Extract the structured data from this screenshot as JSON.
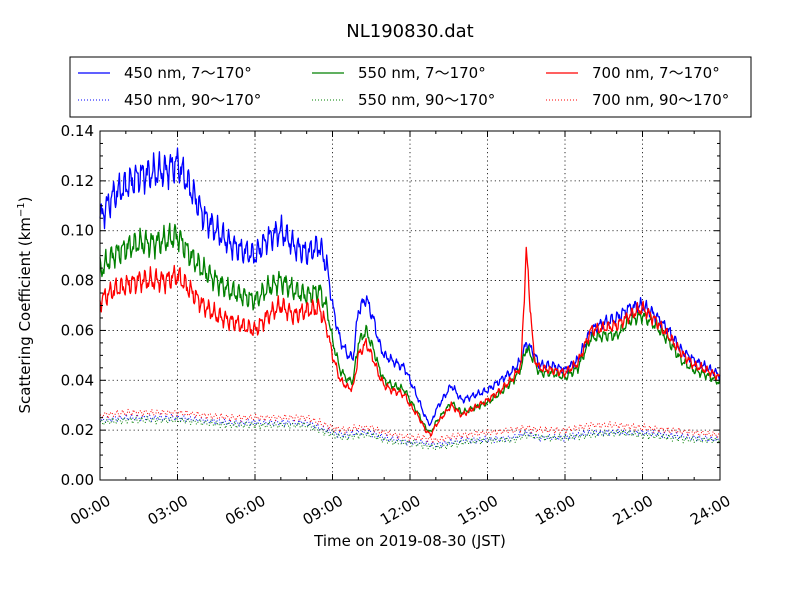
{
  "chart_data": {
    "type": "line",
    "title": "NL190830.dat",
    "xlabel": "Time on 2019-08-30 (JST)",
    "ylabel_base": "Scattering Coefficient (km",
    "ylabel_sup": "−1",
    "ylabel_end": ")",
    "xlim": [
      0,
      24
    ],
    "ylim": [
      0,
      0.14
    ],
    "x_unit": "hours",
    "x_ticks": [
      0,
      3,
      6,
      9,
      12,
      15,
      18,
      21,
      24
    ],
    "x_tick_labels": [
      "00:00",
      "03:00",
      "06:00",
      "09:00",
      "12:00",
      "15:00",
      "18:00",
      "21:00",
      "24:00"
    ],
    "y_ticks": [
      0,
      0.02,
      0.04,
      0.06,
      0.08,
      0.1,
      0.12,
      0.14
    ],
    "y_tick_labels": [
      "0.00",
      "0.02",
      "0.04",
      "0.06",
      "0.08",
      "0.10",
      "0.12",
      "0.14"
    ],
    "grid": true,
    "legend_position": "top (above plot), 3 columns",
    "series": [
      {
        "name": "450 nm, 7～170°",
        "color": "#0000ff",
        "style": "solid",
        "x": [
          0,
          0.5,
          1,
          1.5,
          2,
          2.5,
          3,
          3.5,
          4,
          4.5,
          5,
          5.5,
          6,
          6.5,
          7,
          7.5,
          8,
          8.5,
          8.8,
          9,
          9.3,
          9.6,
          9.8,
          10,
          10.3,
          10.6,
          10.8,
          11,
          11.3,
          11.6,
          11.8,
          12,
          12.3,
          12.6,
          12.8,
          13,
          13.3,
          13.6,
          14,
          14.5,
          15,
          15.5,
          16,
          16.3,
          16.5,
          16.8,
          17,
          17.5,
          18,
          18.5,
          19,
          19.5,
          20,
          20.5,
          21,
          21.5,
          22,
          22.5,
          23,
          23.5,
          24
        ],
        "y": [
          0.105,
          0.114,
          0.118,
          0.122,
          0.123,
          0.124,
          0.127,
          0.117,
          0.106,
          0.1,
          0.095,
          0.092,
          0.09,
          0.097,
          0.1,
          0.094,
          0.091,
          0.094,
          0.085,
          0.07,
          0.056,
          0.05,
          0.049,
          0.068,
          0.073,
          0.064,
          0.055,
          0.05,
          0.048,
          0.046,
          0.045,
          0.04,
          0.033,
          0.025,
          0.022,
          0.028,
          0.033,
          0.038,
          0.032,
          0.034,
          0.036,
          0.04,
          0.044,
          0.048,
          0.055,
          0.051,
          0.046,
          0.046,
          0.044,
          0.048,
          0.06,
          0.063,
          0.065,
          0.069,
          0.07,
          0.066,
          0.06,
          0.052,
          0.048,
          0.045,
          0.042
        ]
      },
      {
        "name": "550 nm, 7～170°",
        "color": "#008000",
        "style": "solid",
        "x": [
          0,
          0.5,
          1,
          1.5,
          2,
          2.5,
          3,
          3.5,
          4,
          4.5,
          5,
          5.5,
          6,
          6.5,
          7,
          7.5,
          8,
          8.5,
          8.8,
          9,
          9.3,
          9.6,
          9.8,
          10,
          10.3,
          10.6,
          10.8,
          11,
          11.3,
          11.6,
          11.8,
          12,
          12.3,
          12.6,
          12.8,
          13,
          13.3,
          13.6,
          14,
          14.5,
          15,
          15.5,
          16,
          16.3,
          16.5,
          16.8,
          17,
          17.5,
          18,
          18.5,
          19,
          19.5,
          20,
          20.5,
          21,
          21.5,
          22,
          22.5,
          23,
          23.5,
          24
        ],
        "y": [
          0.084,
          0.09,
          0.093,
          0.095,
          0.095,
          0.096,
          0.098,
          0.09,
          0.084,
          0.08,
          0.076,
          0.074,
          0.072,
          0.077,
          0.08,
          0.076,
          0.074,
          0.076,
          0.068,
          0.056,
          0.044,
          0.04,
          0.04,
          0.055,
          0.06,
          0.052,
          0.045,
          0.04,
          0.038,
          0.037,
          0.036,
          0.032,
          0.027,
          0.021,
          0.019,
          0.023,
          0.027,
          0.031,
          0.027,
          0.029,
          0.031,
          0.035,
          0.04,
          0.045,
          0.053,
          0.048,
          0.043,
          0.043,
          0.041,
          0.045,
          0.057,
          0.058,
          0.058,
          0.064,
          0.066,
          0.062,
          0.056,
          0.048,
          0.044,
          0.042,
          0.039
        ]
      },
      {
        "name": "700 nm, 7～170°",
        "color": "#ff0000",
        "style": "solid",
        "x": [
          0,
          0.5,
          1,
          1.5,
          2,
          2.5,
          3,
          3.5,
          4,
          4.5,
          5,
          5.5,
          6,
          6.5,
          7,
          7.5,
          8,
          8.5,
          8.8,
          9,
          9.3,
          9.6,
          9.8,
          10,
          10.3,
          10.6,
          10.8,
          11,
          11.3,
          11.6,
          11.8,
          12,
          12.3,
          12.6,
          12.8,
          13,
          13.3,
          13.6,
          14,
          14.5,
          15,
          15.5,
          16,
          16.3,
          16.5,
          16.8,
          17,
          17.5,
          18,
          18.5,
          19,
          19.5,
          20,
          20.5,
          21,
          21.5,
          22,
          22.5,
          23,
          23.5,
          24
        ],
        "y": [
          0.072,
          0.076,
          0.078,
          0.08,
          0.08,
          0.08,
          0.082,
          0.076,
          0.07,
          0.066,
          0.064,
          0.062,
          0.06,
          0.066,
          0.07,
          0.066,
          0.068,
          0.069,
          0.06,
          0.05,
          0.04,
          0.037,
          0.037,
          0.05,
          0.055,
          0.048,
          0.042,
          0.038,
          0.036,
          0.035,
          0.034,
          0.03,
          0.026,
          0.02,
          0.018,
          0.022,
          0.026,
          0.03,
          0.026,
          0.029,
          0.032,
          0.036,
          0.041,
          0.046,
          0.092,
          0.049,
          0.045,
          0.044,
          0.043,
          0.047,
          0.06,
          0.061,
          0.062,
          0.066,
          0.069,
          0.064,
          0.058,
          0.051,
          0.046,
          0.044,
          0.041
        ]
      },
      {
        "name": "450 nm, 90～170°",
        "color": "#0000ff",
        "style": "dotted",
        "x": [
          0,
          1,
          2,
          3,
          4,
          5,
          6,
          7,
          8,
          8.5,
          9,
          9.5,
          10,
          10.5,
          11,
          11.5,
          12,
          12.5,
          13,
          13.5,
          14,
          15,
          16,
          16.5,
          17,
          18,
          19,
          20,
          21,
          22,
          23,
          24
        ],
        "y": [
          0.024,
          0.025,
          0.025,
          0.025,
          0.024,
          0.023,
          0.023,
          0.023,
          0.023,
          0.021,
          0.019,
          0.018,
          0.019,
          0.019,
          0.017,
          0.016,
          0.015,
          0.015,
          0.014,
          0.015,
          0.016,
          0.016,
          0.017,
          0.019,
          0.017,
          0.017,
          0.019,
          0.019,
          0.019,
          0.018,
          0.017,
          0.016
        ]
      },
      {
        "name": "550 nm, 90～170°",
        "color": "#008000",
        "style": "dotted",
        "x": [
          0,
          1,
          2,
          3,
          4,
          5,
          6,
          7,
          8,
          8.5,
          9,
          9.5,
          10,
          10.5,
          11,
          11.5,
          12,
          12.5,
          13,
          13.5,
          14,
          15,
          16,
          16.5,
          17,
          18,
          19,
          20,
          21,
          22,
          23,
          24
        ],
        "y": [
          0.023,
          0.024,
          0.024,
          0.024,
          0.023,
          0.022,
          0.022,
          0.022,
          0.022,
          0.02,
          0.018,
          0.017,
          0.018,
          0.018,
          0.016,
          0.015,
          0.015,
          0.014,
          0.013,
          0.014,
          0.015,
          0.016,
          0.016,
          0.018,
          0.017,
          0.017,
          0.018,
          0.019,
          0.018,
          0.017,
          0.016,
          0.016
        ]
      },
      {
        "name": "700 nm, 90～170°",
        "color": "#ff0000",
        "style": "dotted",
        "x": [
          0,
          1,
          2,
          3,
          4,
          5,
          6,
          7,
          8,
          8.5,
          9,
          9.5,
          10,
          10.5,
          11,
          11.5,
          12,
          12.5,
          13,
          13.5,
          14,
          15,
          16,
          16.5,
          17,
          18,
          19,
          20,
          21,
          22,
          23,
          24
        ],
        "y": [
          0.026,
          0.027,
          0.027,
          0.027,
          0.026,
          0.025,
          0.025,
          0.025,
          0.025,
          0.023,
          0.021,
          0.02,
          0.021,
          0.021,
          0.019,
          0.018,
          0.017,
          0.017,
          0.016,
          0.017,
          0.018,
          0.019,
          0.02,
          0.021,
          0.02,
          0.02,
          0.022,
          0.022,
          0.021,
          0.02,
          0.019,
          0.018
        ]
      }
    ]
  }
}
